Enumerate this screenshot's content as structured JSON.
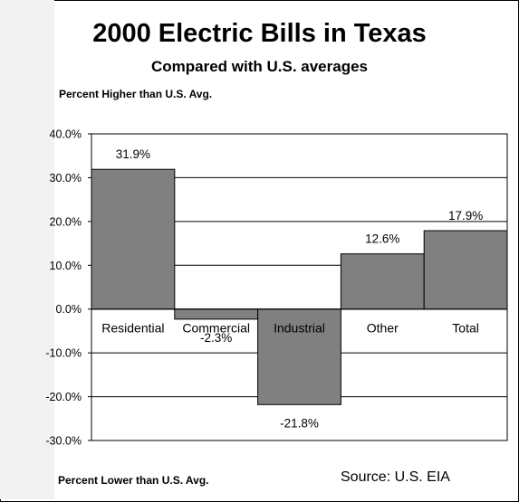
{
  "chart_data": {
    "type": "bar",
    "title": "2000 Electric Bills in Texas",
    "subtitle": "Compared with U.S. averages",
    "upper_axis_note": "Percent Higher than U.S. Avg.",
    "lower_axis_note": "Percent Lower than U.S. Avg.",
    "source": "Source: U.S. EIA",
    "categories": [
      "Residential",
      "Commercial",
      "Industrial",
      "Other",
      "Total"
    ],
    "values": [
      31.9,
      -2.3,
      -21.8,
      12.6,
      17.9
    ],
    "data_labels": [
      "31.9%",
      "-2.3%",
      "-21.8%",
      "12.6%",
      "17.9%"
    ],
    "y_ticks": [
      40,
      30,
      20,
      10,
      0,
      -10,
      -20,
      -30
    ],
    "y_tick_labels": [
      "40.0%",
      "30.0%",
      "20.0%",
      "10.0%",
      "0.0%",
      "-10.0%",
      "-20.0%",
      "-30.0%"
    ],
    "ylim": [
      -30,
      40
    ],
    "grid": true,
    "legend": "none",
    "colors": {
      "bar": "#808080",
      "grid": "#000000"
    }
  }
}
